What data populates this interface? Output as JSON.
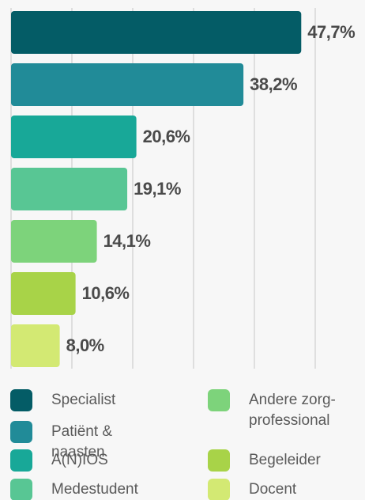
{
  "chart_data": {
    "type": "bar",
    "orientation": "horizontal",
    "categories": [
      "Specialist",
      "Patiënt & naasten",
      "A(N)IOS",
      "Medestudent",
      "Andere zorg-professional",
      "Begeleider",
      "Docent"
    ],
    "values": [
      47.7,
      38.2,
      20.6,
      19.1,
      14.1,
      10.6,
      8.0
    ],
    "value_labels": [
      "47,7%",
      "38,2%",
      "20,6%",
      "19,1%",
      "14,1%",
      "10,6%",
      "8,0%"
    ],
    "colors": [
      "#045c66",
      "#218b98",
      "#18a898",
      "#58c694",
      "#7dd37b",
      "#a8d348",
      "#d3e973"
    ],
    "xlim": [
      0,
      50
    ],
    "xticks": [
      0,
      10,
      20,
      30,
      40,
      50
    ],
    "grid": true
  }
}
